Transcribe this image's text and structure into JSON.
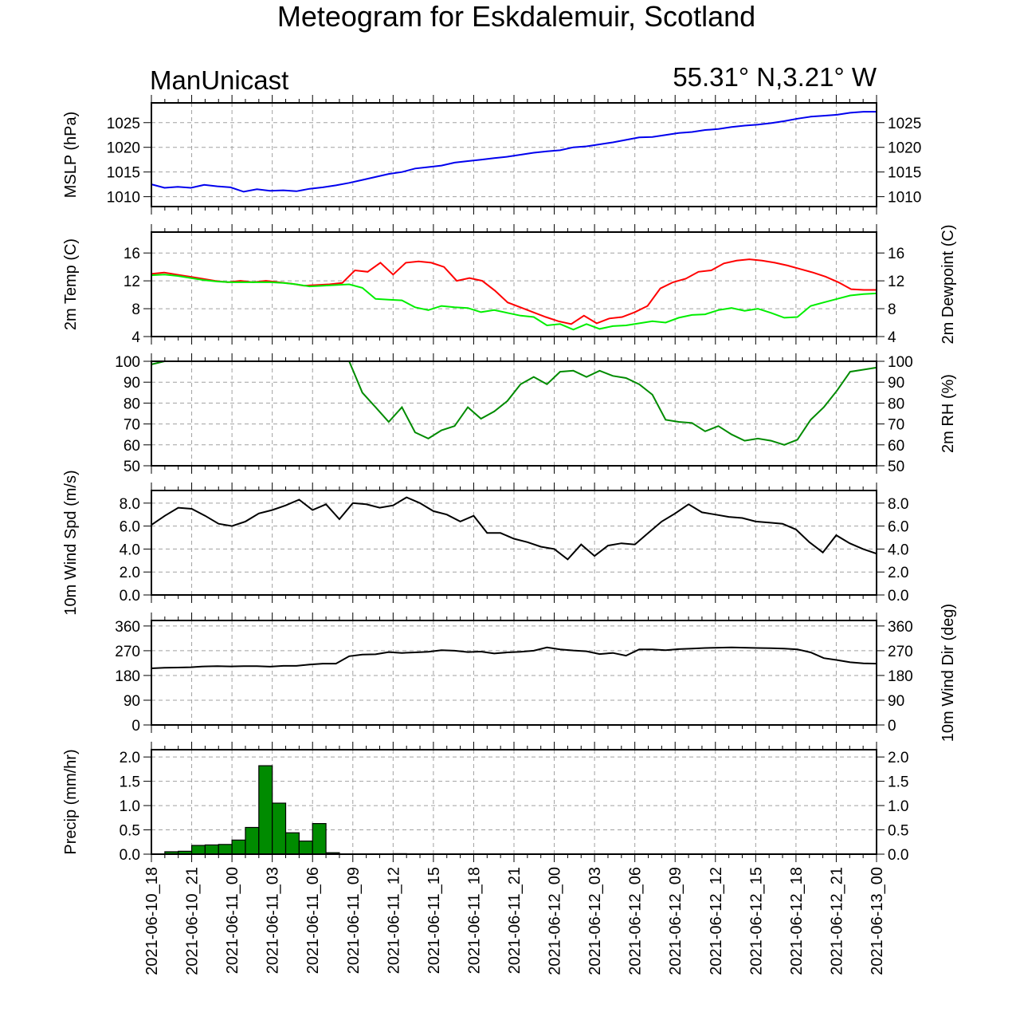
{
  "title": "Meteogram for Eskdalemuir, Scotland",
  "model": "ManUnicast",
  "location": "55.31° N,3.21° W",
  "x_tick_labels": [
    "2021-06-10_18",
    "2021-06-10_21",
    "2021-06-11_00",
    "2021-06-11_03",
    "2021-06-11_06",
    "2021-06-11_09",
    "2021-06-11_12",
    "2021-06-11_15",
    "2021-06-11_18",
    "2021-06-11_21",
    "2021-06-12_00",
    "2021-06-12_03",
    "2021-06-12_06",
    "2021-06-12_09",
    "2021-06-12_12",
    "2021-06-12_15",
    "2021-06-12_18",
    "2021-06-12_21",
    "2021-06-13_00"
  ],
  "colors": {
    "mslp": "#0000ee",
    "temp": "#ff0000",
    "dewpoint": "#00ee00",
    "rh": "#008b00",
    "wind": "#000000",
    "precip": "#008b00"
  },
  "chart_data": [
    {
      "type": "line",
      "name": "mslp",
      "ylabel": "MSLP (hPa)",
      "ylabel_right": "",
      "ylim": [
        1008,
        1029
      ],
      "yticks": [
        1010,
        1015,
        1020,
        1025
      ],
      "ytick_labels": [
        "1010",
        "1015",
        "1020",
        "1025"
      ],
      "grid": true,
      "series": [
        {
          "color_key": "mslp",
          "values": [
            1012.5,
            1011.8,
            1012.0,
            1011.8,
            1012.4,
            1012.1,
            1011.9,
            1011.0,
            1011.5,
            1011.2,
            1011.3,
            1011.1,
            1011.6,
            1011.9,
            1012.3,
            1012.8,
            1013.4,
            1014.0,
            1014.6,
            1015.0,
            1015.7,
            1016.0,
            1016.3,
            1016.9,
            1017.2,
            1017.5,
            1017.8,
            1018.1,
            1018.5,
            1018.9,
            1019.2,
            1019.4,
            1020.0,
            1020.2,
            1020.6,
            1021.0,
            1021.5,
            1022.0,
            1022.1,
            1022.5,
            1022.9,
            1023.1,
            1023.5,
            1023.7,
            1024.1,
            1024.4,
            1024.6,
            1024.9,
            1025.3,
            1025.8,
            1026.2,
            1026.4,
            1026.6,
            1027.0,
            1027.2,
            1027.2
          ]
        }
      ]
    },
    {
      "type": "line",
      "name": "temp",
      "ylabel": "2m Temp (C)",
      "ylabel_right": "2m Dewpoint (C)",
      "ylim": [
        4,
        19
      ],
      "yticks": [
        4,
        8,
        12,
        16
      ],
      "ytick_labels": [
        "4",
        "8",
        "12",
        "16"
      ],
      "grid": true,
      "series": [
        {
          "color_key": "temp",
          "values": [
            13.0,
            13.2,
            12.9,
            12.6,
            12.3,
            12.0,
            11.8,
            12.0,
            11.8,
            12.0,
            11.8,
            11.6,
            11.3,
            11.4,
            11.5,
            11.7,
            13.5,
            13.3,
            14.6,
            12.9,
            14.6,
            14.8,
            14.6,
            14.0,
            12.0,
            12.4,
            12.0,
            10.6,
            8.9,
            8.2,
            7.5,
            6.8,
            6.2,
            5.8,
            7.0,
            5.9,
            6.6,
            6.8,
            7.5,
            8.4,
            10.9,
            11.8,
            12.3,
            13.3,
            13.5,
            14.5,
            14.9,
            15.1,
            14.9,
            14.6,
            14.2,
            13.7,
            13.2,
            12.6,
            11.8,
            10.8,
            10.7,
            10.7
          ]
        },
        {
          "color_key": "dewpoint",
          "values": [
            12.8,
            12.9,
            12.7,
            12.4,
            12.1,
            11.9,
            11.8,
            11.8,
            11.8,
            11.8,
            11.7,
            11.5,
            11.2,
            11.3,
            11.4,
            11.5,
            11.0,
            9.4,
            9.3,
            9.2,
            8.2,
            7.8,
            8.4,
            8.2,
            8.1,
            7.5,
            7.8,
            7.4,
            7.0,
            6.8,
            5.6,
            5.8,
            5.0,
            5.8,
            5.1,
            5.5,
            5.6,
            5.9,
            6.2,
            6.0,
            6.7,
            7.1,
            7.2,
            7.8,
            8.1,
            7.7,
            8.0,
            7.4,
            6.7,
            6.8,
            8.4,
            8.9,
            9.4,
            9.9,
            10.1,
            10.2
          ]
        }
      ]
    },
    {
      "type": "line",
      "name": "rh",
      "ylabel": "",
      "ylabel_right": "2m RH (%)",
      "ylim": [
        50,
        100
      ],
      "yticks": [
        50,
        60,
        70,
        80,
        90,
        100
      ],
      "ytick_labels": [
        "50",
        "60",
        "70",
        "80",
        "90",
        "100"
      ],
      "grid": true,
      "series": [
        {
          "color_key": "rh",
          "values": [
            98.5,
            100,
            100,
            100,
            100,
            100,
            100,
            100,
            100,
            100,
            100,
            100,
            100,
            100,
            100,
            100,
            85,
            78,
            71,
            78,
            66,
            63,
            67,
            69,
            78,
            72.5,
            76,
            81,
            89,
            92.5,
            89,
            95,
            95.5,
            92.5,
            95.5,
            93,
            92,
            89,
            84,
            72,
            71,
            70.5,
            66.5,
            69,
            65,
            62,
            63,
            62,
            60,
            62.5,
            72,
            78,
            86,
            95,
            96,
            97
          ]
        }
      ]
    },
    {
      "type": "line",
      "name": "wind_speed",
      "ylabel": "10m Wind Spd (m/s)",
      "ylabel_right": "",
      "ylim": [
        0,
        9.1
      ],
      "yticks": [
        0,
        2,
        4,
        6,
        8
      ],
      "ytick_labels": [
        "0.0",
        "2.0",
        "4.0",
        "6.0",
        "8.0"
      ],
      "grid": true,
      "series": [
        {
          "color_key": "wind",
          "values": [
            6.1,
            6.9,
            7.6,
            7.5,
            6.9,
            6.2,
            6.0,
            6.4,
            7.1,
            7.4,
            7.8,
            8.3,
            7.4,
            7.9,
            6.6,
            8.0,
            7.9,
            7.6,
            7.8,
            8.5,
            8.0,
            7.3,
            7.0,
            6.4,
            6.9,
            5.4,
            5.4,
            4.9,
            4.6,
            4.2,
            4.0,
            3.1,
            4.4,
            3.4,
            4.3,
            4.5,
            4.4,
            5.4,
            6.4,
            7.1,
            7.9,
            7.2,
            7.0,
            6.8,
            6.7,
            6.4,
            6.3,
            6.2,
            5.7,
            4.6,
            3.7,
            5.2,
            4.5,
            4.0,
            3.6
          ]
        }
      ]
    },
    {
      "type": "line",
      "name": "wind_direction",
      "ylabel": "",
      "ylabel_right": "10m Wind Dir (deg)",
      "ylim": [
        0,
        380
      ],
      "yticks": [
        0,
        90,
        180,
        270,
        360
      ],
      "ytick_labels": [
        "0",
        "90",
        "180",
        "270",
        "360"
      ],
      "grid": true,
      "series": [
        {
          "color_key": "wind",
          "values": [
            206,
            208,
            209,
            210,
            213,
            214,
            213,
            214,
            214,
            212,
            215,
            215,
            220,
            223,
            223,
            250,
            256,
            257,
            265,
            262,
            264,
            266,
            272,
            270,
            265,
            267,
            260,
            264,
            266,
            270,
            282,
            275,
            271,
            268,
            258,
            262,
            252,
            275,
            275,
            272,
            276,
            278,
            280,
            281,
            282,
            281,
            280,
            279,
            278,
            275,
            264,
            243,
            236,
            228,
            224,
            223
          ]
        }
      ]
    },
    {
      "type": "bar",
      "name": "precip",
      "ylabel": "Precip (mm/hr)",
      "ylabel_right": "",
      "ylim": [
        0,
        2.15
      ],
      "yticks": [
        0,
        0.5,
        1.0,
        1.5,
        2.0
      ],
      "ytick_labels": [
        "0.0",
        "0.5",
        "1.0",
        "1.5",
        "2.0"
      ],
      "grid": true,
      "values": [
        0,
        0.05,
        0.06,
        0.18,
        0.19,
        0.2,
        0.29,
        0.55,
        1.82,
        1.05,
        0.44,
        0.27,
        0.63,
        0.03,
        0,
        0,
        0,
        0,
        0.01,
        0,
        0,
        0,
        0,
        0,
        0,
        0,
        0,
        0,
        0,
        0,
        0,
        0,
        0,
        0,
        0,
        0,
        0,
        0,
        0,
        0,
        0,
        0,
        0,
        0,
        0,
        0,
        0,
        0,
        0,
        0,
        0,
        0,
        0,
        0
      ]
    }
  ]
}
